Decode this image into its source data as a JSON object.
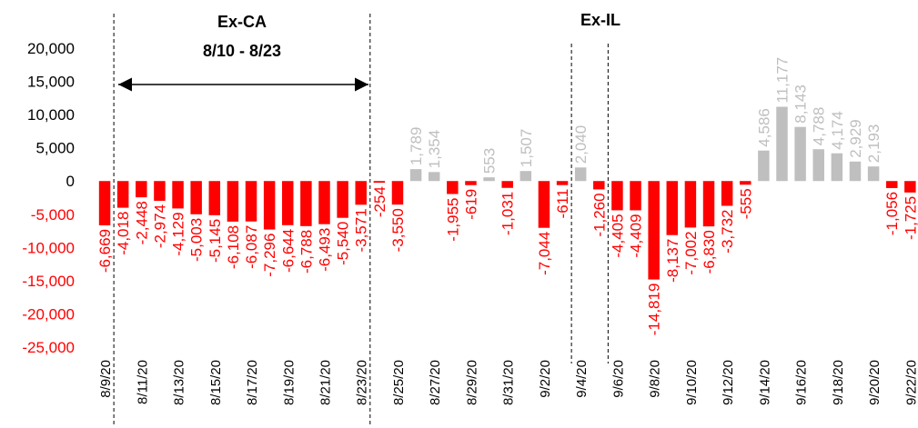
{
  "chart_data": {
    "type": "bar",
    "annotations": [
      "Ex-CA",
      "8/10 - 8/23",
      "Ex-IL"
    ],
    "categories": [
      "8/9/20",
      null,
      "8/11/20",
      null,
      "8/13/20",
      null,
      "8/15/20",
      null,
      "8/17/20",
      null,
      "8/19/20",
      null,
      "8/21/20",
      null,
      "8/23/20",
      null,
      "8/25/20",
      null,
      "8/27/20",
      null,
      "8/29/20",
      null,
      "8/31/20",
      null,
      "9/2/20",
      null,
      "9/4/20",
      null,
      "9/6/20",
      null,
      "9/8/20",
      null,
      "9/10/20",
      null,
      "9/12/20",
      null,
      "9/14/20",
      null,
      "9/16/20",
      null,
      "9/18/20",
      null,
      "9/20/20",
      null,
      "9/22/20"
    ],
    "values": [
      -6669,
      -4018,
      -2448,
      -2974,
      -4129,
      -5003,
      -5145,
      -6108,
      -6087,
      -7296,
      -6644,
      -6788,
      -6493,
      -5540,
      -3571,
      -254,
      -3550,
      1789,
      1354,
      -1955,
      -619,
      553,
      -1031,
      1507,
      -7044,
      -611,
      2040,
      -1260,
      -4405,
      -4409,
      -14819,
      -8137,
      -7002,
      -6830,
      -3732,
      -555,
      4586,
      11177,
      8143,
      4788,
      4174,
      2929,
      2193,
      -1056,
      -1725
    ],
    "value_labels": [
      "-6,669",
      "-4,018",
      "-2,448",
      "-2,974",
      "-4,129",
      "-5,003",
      "-5,145",
      "-6,108",
      "-6,087",
      "-7,296",
      "-6,644",
      "-6,788",
      "-6,493",
      "-5,540",
      "-3,571",
      "-254",
      "-3,550",
      "1,789",
      "1,354",
      "-1,955",
      "-619",
      "553",
      "-1,031",
      "1,507",
      "-7,044",
      "-611",
      "2,040",
      "-1,260",
      "-4,405",
      "-4,409",
      "-14,819",
      "-8,137",
      "-7,002",
      "-6,830",
      "-3,732",
      "-555",
      "4,586",
      "11,177",
      "8,143",
      "4,788",
      "4,174",
      "2,929",
      "2,193",
      "-1,056",
      "-1,725"
    ],
    "positive_color": "#bfbfbf",
    "negative_color": "#ff0000",
    "ylim": [
      -25000,
      20000
    ],
    "yticks": [
      {
        "value": -25000,
        "label": "-25,000"
      },
      {
        "value": -20000,
        "label": "-20,000"
      },
      {
        "value": -15000,
        "label": "-15,000"
      },
      {
        "value": -10000,
        "label": "-10,000"
      },
      {
        "value": -5000,
        "label": "-5,000"
      },
      0,
      {
        "value": 5000,
        "label": "5,000"
      },
      {
        "value": 10000,
        "label": "10,000"
      },
      {
        "value": 15000,
        "label": "15,000"
      },
      {
        "value": 20000,
        "label": "20,000"
      }
    ],
    "grid": false
  }
}
